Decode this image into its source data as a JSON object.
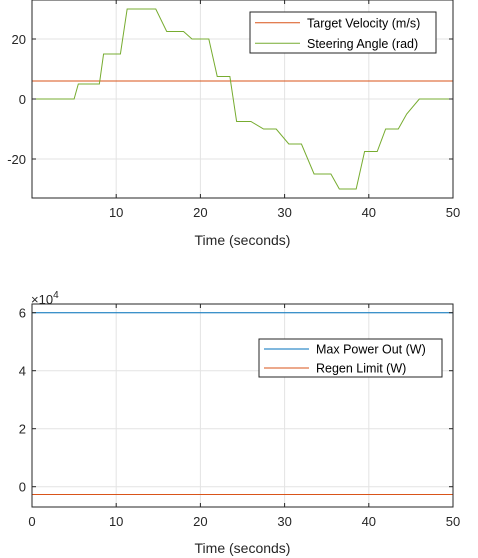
{
  "chart_data": [
    {
      "type": "line",
      "title": "",
      "xlabel": "Time (seconds)",
      "ylabel": "",
      "xlim": [
        0,
        50
      ],
      "ylim": [
        -33,
        33
      ],
      "grid": true,
      "legend_position": "top-right",
      "x_ticks": [
        10,
        20,
        30,
        40,
        50
      ],
      "y_ticks": [
        -20,
        0,
        20
      ],
      "series": [
        {
          "name": "Target Velocity (m/s)",
          "color": "#D95319",
          "x": [
            0,
            50
          ],
          "y": [
            6,
            6
          ]
        },
        {
          "name": "Steering Angle (rad)",
          "color": "#77AC30",
          "x": [
            0,
            5,
            5.5,
            8,
            8.5,
            10.5,
            11.3,
            14.7,
            16,
            18,
            19,
            21,
            22,
            23.5,
            24.3,
            26,
            27.5,
            29,
            30.5,
            32,
            33.5,
            35.5,
            36.5,
            38.5,
            39.5,
            41,
            42,
            43.5,
            44.5,
            46,
            50
          ],
          "y": [
            0,
            0,
            5,
            5,
            15,
            15,
            30,
            30,
            22.5,
            22.5,
            20,
            20,
            7.5,
            7.5,
            -7.5,
            -7.5,
            -10,
            -10,
            -15,
            -15,
            -25,
            -25,
            -30,
            -30,
            -17.5,
            -17.5,
            -10,
            -10,
            -5,
            0,
            0
          ]
        }
      ]
    },
    {
      "type": "line",
      "title": "",
      "xlabel": "Time (seconds)",
      "ylabel": "",
      "xlim": [
        0,
        50
      ],
      "ylim": [
        -0.7,
        6.3
      ],
      "y_exponent_label": "×10",
      "y_exponent": "4",
      "grid": true,
      "legend_position": "top-right",
      "x_ticks": [
        0,
        10,
        20,
        30,
        40,
        50
      ],
      "y_ticks": [
        0,
        2,
        4,
        6
      ],
      "series": [
        {
          "name": "Max Power Out (W)",
          "color": "#0072BD",
          "x": [
            0,
            0,
            50
          ],
          "y": [
            0,
            6,
            6
          ]
        },
        {
          "name": "Regen Limit (W)",
          "color": "#D95319",
          "x": [
            0,
            50
          ],
          "y": [
            -0.27,
            -0.27
          ]
        }
      ]
    }
  ]
}
